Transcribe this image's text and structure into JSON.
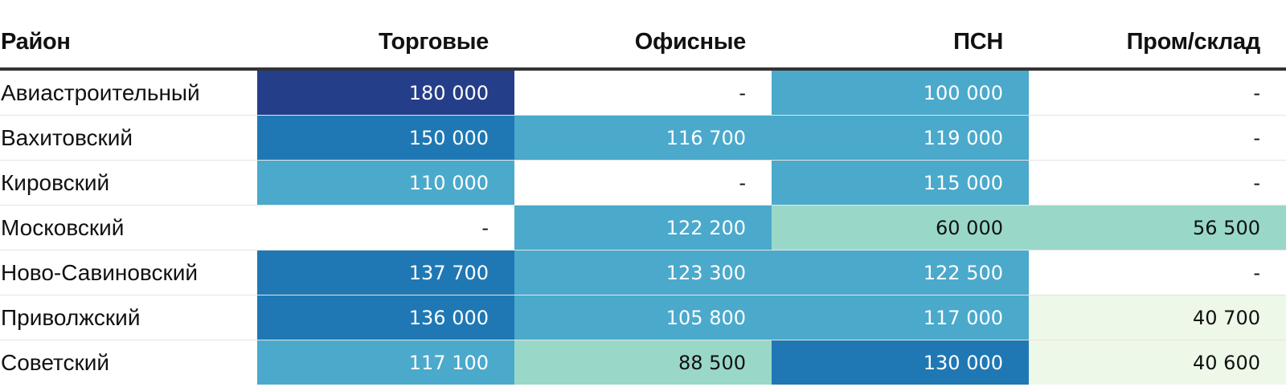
{
  "chart_data": {
    "type": "heatmap",
    "columns": [
      "Район",
      "Торговые",
      "Офисные",
      "ПСН",
      "Пром/склад"
    ],
    "rows": [
      {
        "district": "Авиастроительный",
        "values": [
          "180 000",
          "-",
          "100 000",
          "-"
        ]
      },
      {
        "district": "Вахитовский",
        "values": [
          "150 000",
          "116 700",
          "119 000",
          "-"
        ]
      },
      {
        "district": "Кировский",
        "values": [
          "110 000",
          "-",
          "115 000",
          "-"
        ]
      },
      {
        "district": "Московский",
        "values": [
          "-",
          "122 200",
          "60 000",
          "56 500"
        ]
      },
      {
        "district": "Ново-Савиновский",
        "values": [
          "137 700",
          "123 300",
          "122 500",
          "-"
        ]
      },
      {
        "district": "Приволжский",
        "values": [
          "136 000",
          "105 800",
          "117 000",
          "40 700"
        ]
      },
      {
        "district": "Советский",
        "values": [
          "117 100",
          "88 500",
          "130 000",
          "40 600"
        ]
      }
    ],
    "colors": {
      "lowest": "#edf8e9",
      "low": "#99d8c9",
      "mid": "#4ba9cc",
      "high": "#1f78b4",
      "highest": "#253e8a",
      "empty": "#ffffff"
    },
    "bins": [
      50000,
      100000,
      130000,
      175000
    ]
  }
}
